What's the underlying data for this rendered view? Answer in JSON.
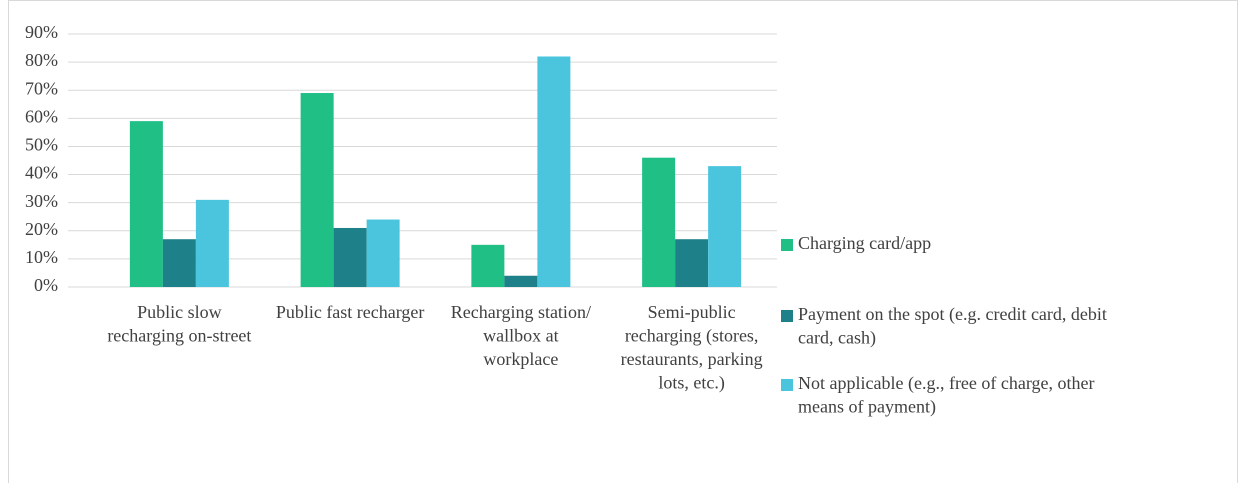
{
  "chart_data": {
    "type": "bar",
    "categories": [
      "Public slow recharging on-street",
      "Public fast recharger",
      "Recharging station/ wallbox at workplace",
      "Semi-public recharging (stores, restaurants, parking lots, etc.)"
    ],
    "series": [
      {
        "name": "Charging card/app",
        "color": "#1fbf86",
        "values": [
          59,
          69,
          15,
          46
        ]
      },
      {
        "name": "Payment on the spot (e.g. credit card, debit card, cash)",
        "color": "#1e8088",
        "values": [
          17,
          21,
          4,
          17
        ]
      },
      {
        "name": "Not applicable (e.g., free of charge, other means of payment)",
        "color": "#4ac5dd",
        "values": [
          31,
          24,
          82,
          43
        ]
      }
    ],
    "ylim": [
      0,
      90
    ],
    "yticks": [
      {
        "value": 0,
        "label": "0%"
      },
      {
        "value": 10,
        "label": "10%"
      },
      {
        "value": 20,
        "label": "20%"
      },
      {
        "value": 30,
        "label": "30%"
      },
      {
        "value": 40,
        "label": "40%"
      },
      {
        "value": 50,
        "label": "50%"
      },
      {
        "value": 60,
        "label": "60%"
      },
      {
        "value": 70,
        "label": "70%"
      },
      {
        "value": 80,
        "label": "80%"
      },
      {
        "value": 90,
        "label": "90%"
      }
    ],
    "grid": true,
    "legend": "right"
  }
}
